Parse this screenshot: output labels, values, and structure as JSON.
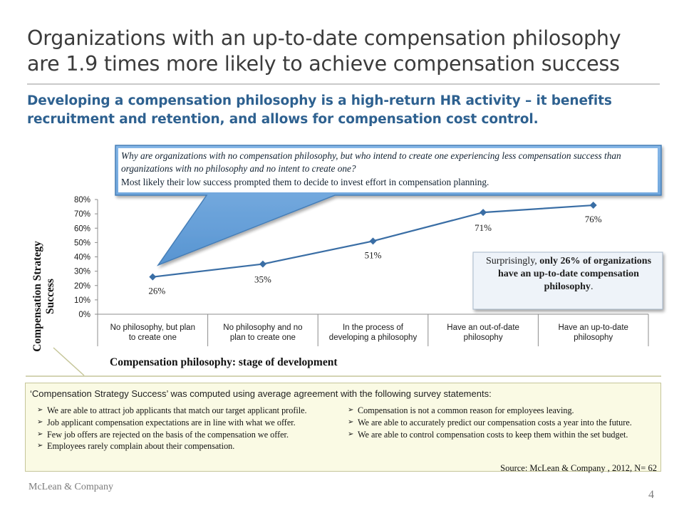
{
  "slide": {
    "title": "Organizations with an up-to-date compensation philosophy are 1.9 times more likely to achieve compensation success",
    "subtitle": "Developing a compensation philosophy is a high-return HR activity – it benefits recruitment and retention, and allows for compensation cost control.",
    "footer_left": "McLean & Company",
    "page_number": "4"
  },
  "callout": {
    "question": "Why are organizations with no compensation philosophy, but who intend to create one experiencing less compensation success than organizations with no philosophy and no intent to create one?",
    "answer": "Most likely their low success prompted them to decide to invest effort in compensation planning."
  },
  "surprise_box": {
    "pre": "Surprisingly, ",
    "bold": "only 26% of organizations have an up-to-date compensation philosophy",
    "post": "."
  },
  "note": {
    "intro": "‘Compensation Strategy Success’ was computed using average agreement with the following survey statements:",
    "left_bullets": [
      "We are able to attract job applicants that match our target applicant profile.",
      "Job applicant compensation expectations are in line with what we offer.",
      "Few job offers are rejected on the basis of the compensation we offer.",
      "Employees rarely complain about their compensation."
    ],
    "right_bullets": [
      "Compensation is not a common reason for employees leaving.",
      "We are able to accurately predict our compensation costs a year into the future.",
      "We are able to control compensation costs to keep them within the set budget."
    ],
    "source": "Source: McLean & Company , 2012, N= 62"
  },
  "colors": {
    "line": "#3a6ea5",
    "title": "#3b3b3b",
    "subtitle": "#2e6190",
    "callout_fill": "#5b9bd5",
    "callout_border": "#3c78b4",
    "surprise_fill": "#e8f0f8"
  },
  "chart_data": {
    "type": "line",
    "categories": [
      "No philosophy, but plan to create one",
      "No philosophy and no plan to create one",
      "In the process of developing a philosophy",
      "Have an out-of-date philosophy",
      "Have an up-to-date philosophy"
    ],
    "category_lines": [
      [
        "No philosophy, but plan",
        "to create one"
      ],
      [
        "No philosophy and no",
        "plan to create one"
      ],
      [
        "In the process of",
        "developing a philosophy"
      ],
      [
        "Have an out-of-date",
        "philosophy"
      ],
      [
        "Have an up-to-date",
        "philosophy"
      ]
    ],
    "values": [
      26,
      35,
      51,
      71,
      76
    ],
    "data_labels": [
      "26%",
      "35%",
      "51%",
      "71%",
      "76%"
    ],
    "ylabel": "Compensation Strategy Success",
    "xlabel": "Compensation philosophy: stage of development",
    "ylim": [
      0,
      80
    ],
    "yticks": [
      "0%",
      "10%",
      "20%",
      "30%",
      "40%",
      "50%",
      "60%",
      "70%",
      "80%"
    ],
    "grid": false,
    "marker": "diamond"
  }
}
